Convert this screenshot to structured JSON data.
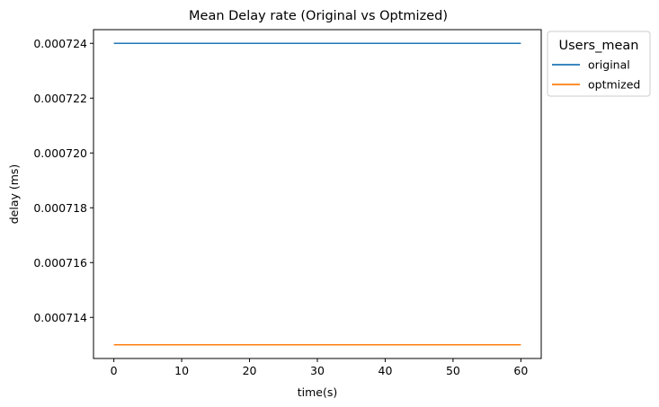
{
  "chart_data": {
    "type": "line",
    "title": "Mean Delay rate (Original vs Optmized)",
    "xlabel": "time(s)",
    "ylabel": "delay (ms)",
    "x": [
      0,
      60
    ],
    "xticks": [
      0,
      10,
      20,
      30,
      40,
      50,
      60
    ],
    "yticks": [
      0.000714,
      0.000716,
      0.000718,
      0.00072,
      0.000722,
      0.000724
    ],
    "ytick_labels": [
      "0.000714",
      "0.000716",
      "0.000718",
      "0.000720",
      "0.000722",
      "0.000724"
    ],
    "xlim": [
      -3,
      63
    ],
    "ylim": [
      0.0007125,
      0.0007245
    ],
    "grid": false,
    "legend": {
      "title": "Users_mean",
      "placement": "outside upper right"
    },
    "series": [
      {
        "name": "original",
        "color": "#1f77b4",
        "values": [
          0.000724,
          0.000724
        ]
      },
      {
        "name": "optmized",
        "color": "#ff7f0e",
        "values": [
          0.000713,
          0.000713
        ]
      }
    ]
  }
}
